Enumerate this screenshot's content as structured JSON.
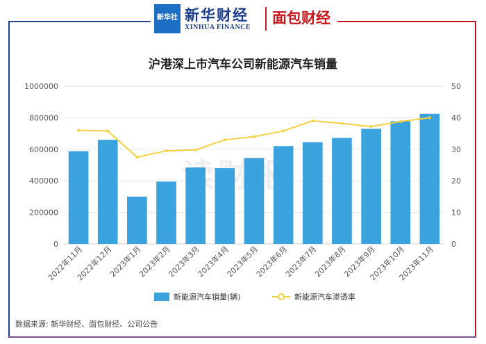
{
  "logos": {
    "badge_text": "新华社",
    "xinhua_cn": "新华财经",
    "xinhua_en": "XINHUA FINANCE",
    "mianbao": "面包财经"
  },
  "title": "沪港深上市汽车公司新能源汽车销量",
  "watermark": "读财报",
  "source": "数据来源: 新华财经、面包财经、公司公告",
  "colors": {
    "bar": "#3aa3dd",
    "line": "#f5d142",
    "grid": "#e6e6e6",
    "axis_text": "#555555"
  },
  "chart_data": {
    "type": "bar",
    "categories": [
      "2022年11月",
      "2022年12月",
      "2023年1月",
      "2023年2月",
      "2023年3月",
      "2023年4月",
      "2023年5月",
      "2023年6月",
      "2023年7月",
      "2023年8月",
      "2023年9月",
      "2023年10月",
      "2023年11月"
    ],
    "series": [
      {
        "name": "新能源汽车销量(辆)",
        "type": "bar",
        "axis": "left",
        "values": [
          588000,
          660000,
          300000,
          395000,
          485000,
          480000,
          545000,
          620000,
          645000,
          672000,
          730000,
          778000,
          825000
        ]
      },
      {
        "name": "新能源汽车渗透率",
        "type": "line",
        "axis": "right",
        "values": [
          36,
          35.8,
          27.5,
          29.5,
          29.8,
          33,
          34,
          35.8,
          39,
          38.2,
          37.2,
          38.8,
          40
        ]
      }
    ],
    "ylim": [
      0,
      1000000
    ],
    "y_ticks": [
      "0",
      "200000",
      "400000",
      "600000",
      "800000",
      "1000000"
    ],
    "y2lim": [
      0,
      50
    ],
    "y2_ticks": [
      "0",
      "10",
      "20",
      "30",
      "40",
      "50"
    ],
    "grid": true,
    "legend_position": "bottom"
  }
}
